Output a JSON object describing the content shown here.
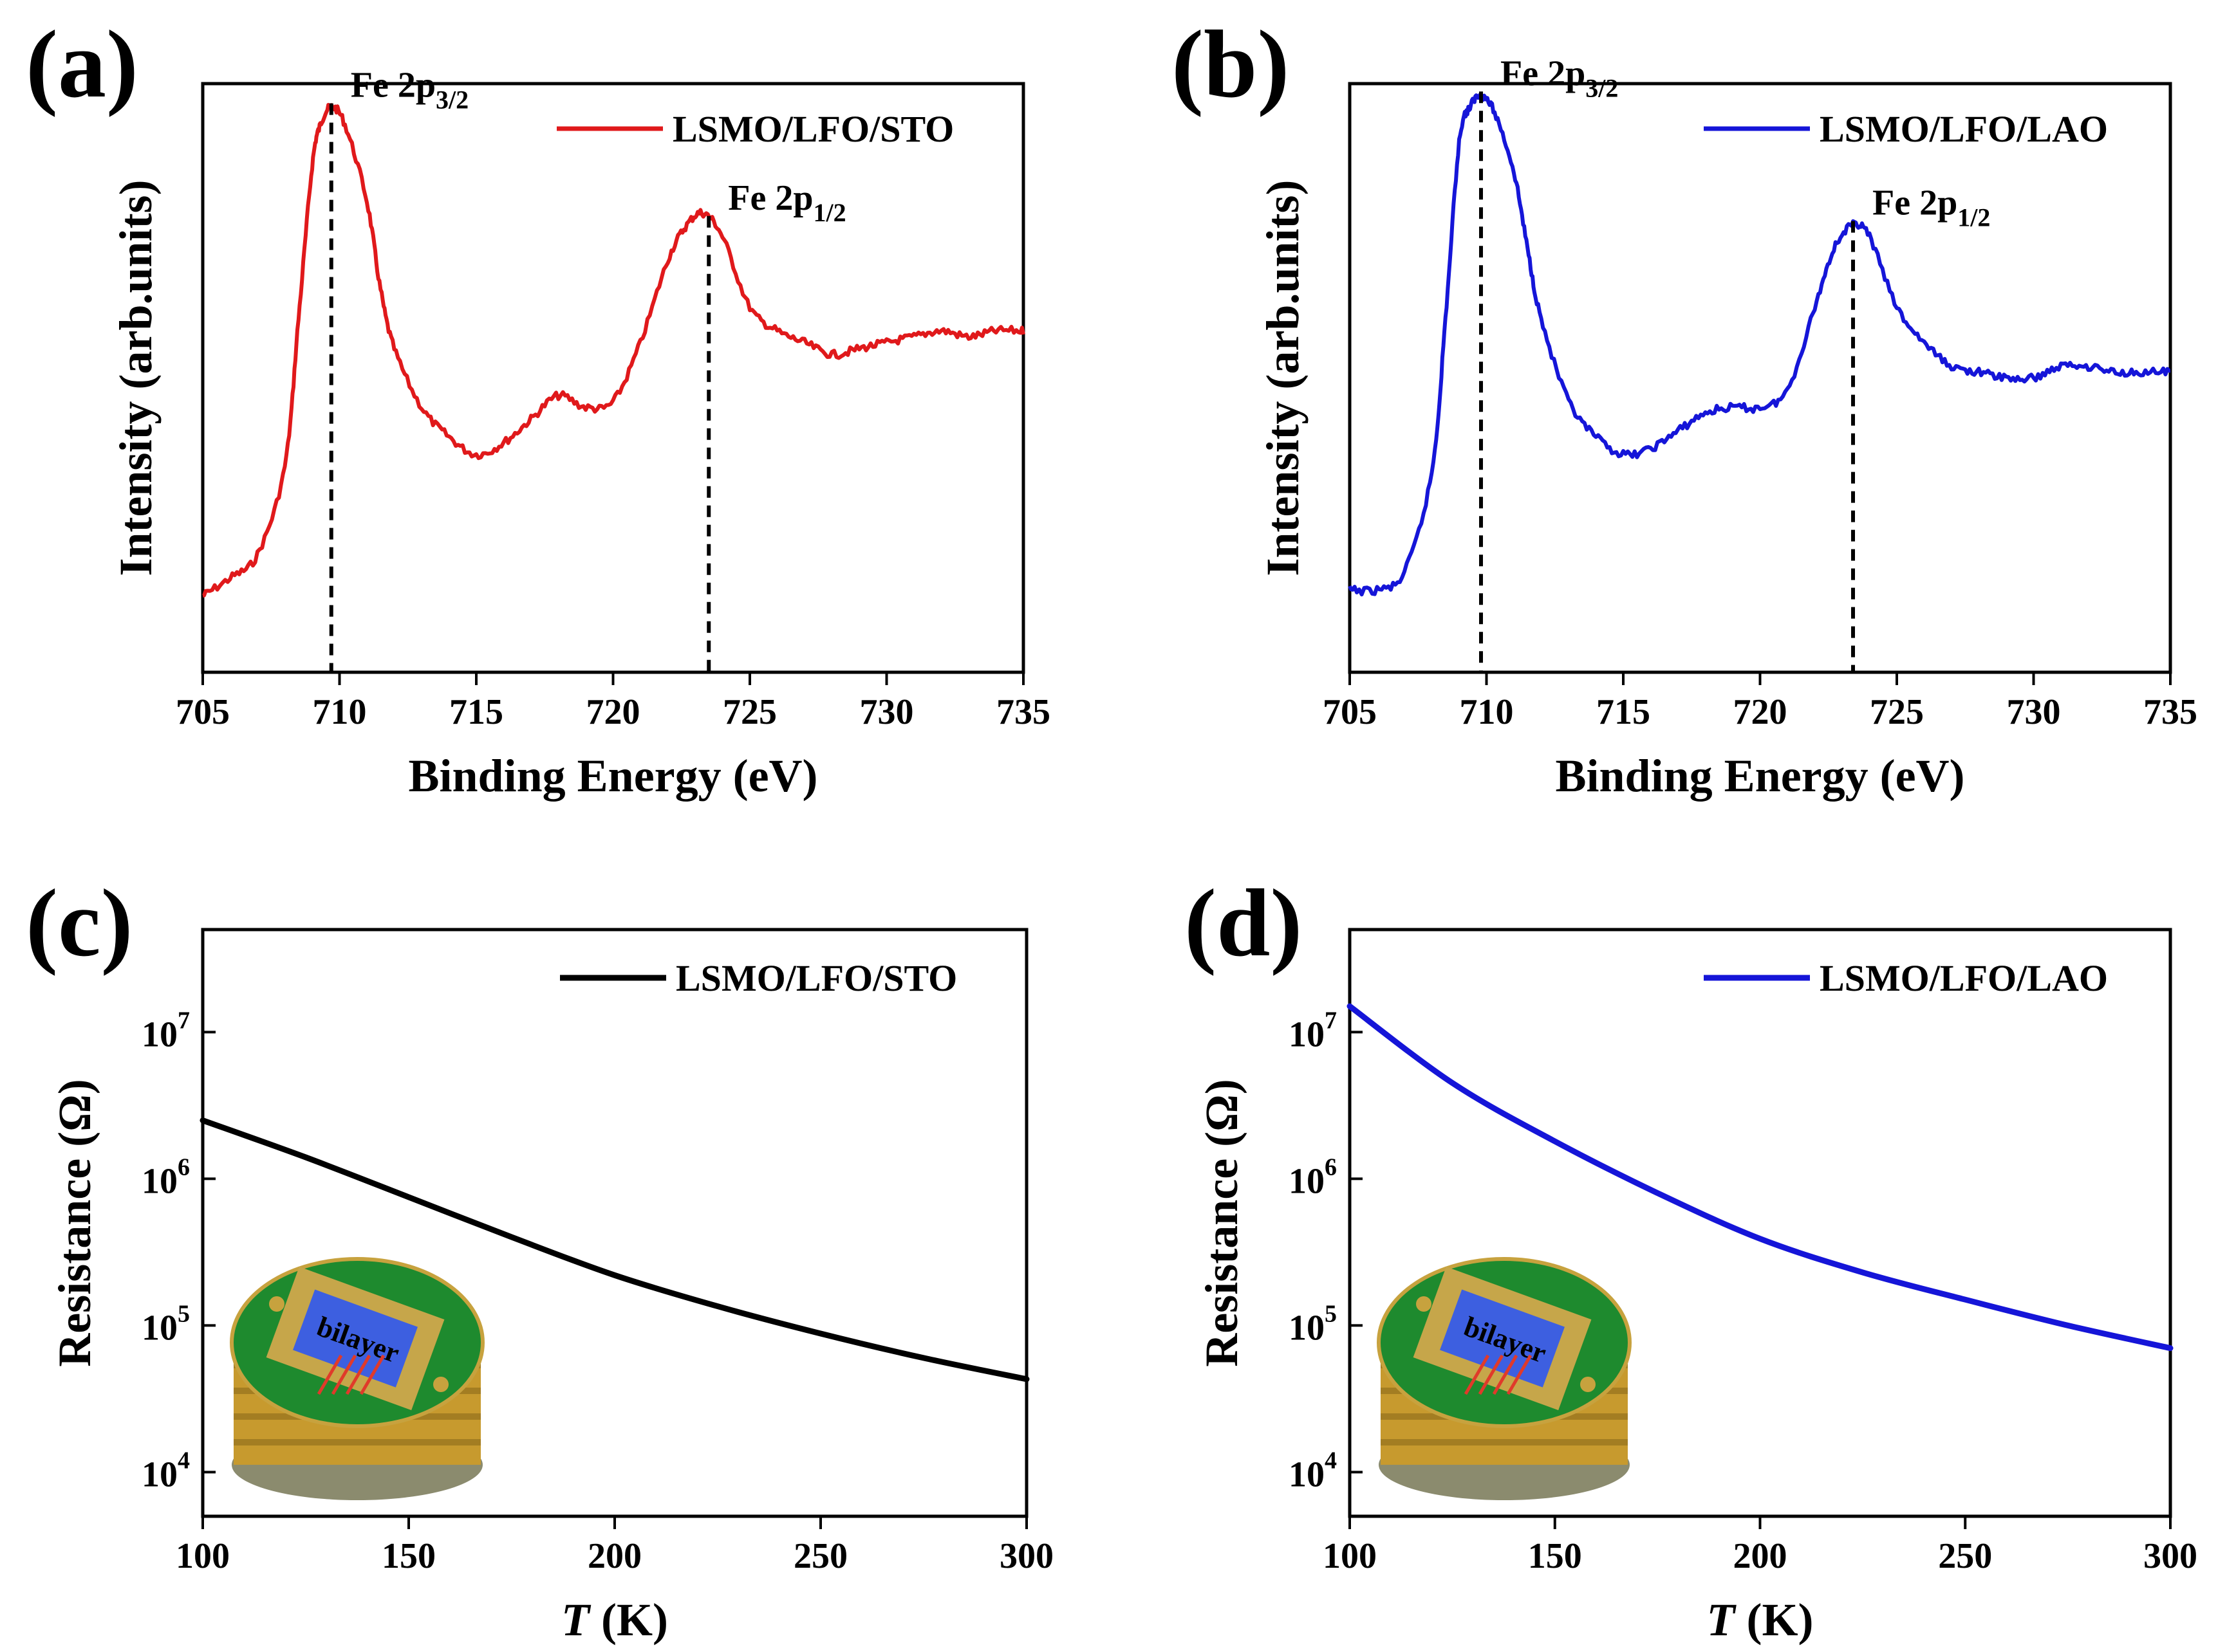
{
  "colors": {
    "red": "#e0191b",
    "blue": "#1515d8",
    "black": "#000000"
  },
  "chart_data": [
    {
      "id": "a",
      "panel_label": "(a)",
      "type": "line",
      "title": "",
      "xlabel": "Binding Energy (eV)",
      "ylabel": "Intensity (arb.units)",
      "xlim": [
        705,
        735
      ],
      "ylim": [
        0,
        100
      ],
      "xticks": [
        705,
        710,
        715,
        720,
        725,
        730,
        735
      ],
      "x_tick_labels": [
        "705",
        "710",
        "715",
        "720",
        "725",
        "730",
        "735"
      ],
      "legend": {
        "position": "top-right",
        "label": "LSMO/LFO/STO"
      },
      "series": [
        {
          "name": "LSMO/LFO/STO",
          "color": "#e0191b",
          "x": [
            705,
            706,
            707,
            708,
            708.5,
            709,
            709.3,
            709.7,
            710.2,
            711,
            711.5,
            712,
            713,
            714,
            715,
            716,
            717,
            718,
            719,
            720,
            721,
            722,
            722.7,
            723.3,
            724,
            725,
            726,
            727,
            728,
            729,
            730,
            731,
            732,
            733,
            734,
            735
          ],
          "y": [
            13,
            16,
            20,
            35,
            60,
            86,
            93,
            96,
            93,
            80,
            65,
            55,
            45,
            40,
            37,
            39,
            43,
            47,
            45,
            46,
            56,
            70,
            76,
            78,
            74,
            62,
            58,
            56,
            54,
            55,
            56,
            57,
            58,
            57,
            58,
            58
          ]
        }
      ],
      "annotations": [
        {
          "main": "Fe 2p",
          "sub": "3/2",
          "x": 709.7
        },
        {
          "main": "Fe 2p",
          "sub": "1/2",
          "x": 723.5
        }
      ]
    },
    {
      "id": "b",
      "panel_label": "(b)",
      "type": "line",
      "title": "",
      "xlabel": "Binding Energy (eV)",
      "ylabel": "Intensity (arb.units)",
      "xlim": [
        705,
        735
      ],
      "ylim": [
        0,
        100
      ],
      "xticks": [
        705,
        710,
        715,
        720,
        725,
        730,
        735
      ],
      "x_tick_labels": [
        "705",
        "710",
        "715",
        "720",
        "725",
        "730",
        "735"
      ],
      "legend": {
        "position": "top-right",
        "label": "LSMO/LFO/LAO"
      },
      "series": [
        {
          "name": "LSMO/LFO/LAO",
          "color": "#1515d8",
          "x": [
            705,
            706,
            707,
            708,
            708.5,
            709,
            709.4,
            709.8,
            710.3,
            711,
            711.5,
            712,
            713,
            714,
            715,
            716,
            717,
            718,
            719,
            720,
            721,
            722,
            722.7,
            723.4,
            724,
            725,
            726,
            727,
            728,
            729,
            730,
            731,
            732,
            733,
            734,
            735
          ],
          "y": [
            14,
            14,
            17,
            34,
            60,
            90,
            96,
            98,
            95,
            85,
            72,
            60,
            46,
            40,
            37,
            38,
            41,
            44,
            45,
            45,
            48,
            62,
            72,
            76,
            74,
            62,
            56,
            52,
            51,
            50,
            50,
            52,
            52,
            51,
            51,
            51
          ]
        }
      ],
      "annotations": [
        {
          "main": "Fe 2p",
          "sub": "3/2",
          "x": 709.8
        },
        {
          "main": "Fe 2p",
          "sub": "1/2",
          "x": 723.4
        }
      ]
    },
    {
      "id": "c",
      "panel_label": "(c)",
      "type": "line",
      "title": "",
      "xlabel": "T (K)",
      "xlabel_italic": "T",
      "xlabel_rest": " (K)",
      "ylabel": "Resistance (Ω)",
      "yscale": "log",
      "xlim": [
        100,
        300
      ],
      "ylim": [
        5000,
        50000000
      ],
      "xticks": [
        100,
        150,
        200,
        250,
        300
      ],
      "x_tick_labels": [
        "100",
        "150",
        "200",
        "250",
        "300"
      ],
      "y_tick_labels": [
        {
          "base": "10",
          "exp": "4",
          "value": 10000
        },
        {
          "base": "10",
          "exp": "5",
          "value": 100000
        },
        {
          "base": "10",
          "exp": "6",
          "value": 1000000
        },
        {
          "base": "10",
          "exp": "7",
          "value": 10000000
        }
      ],
      "legend": {
        "position": "top-right",
        "label": "LSMO/LFO/STO"
      },
      "inset_label": "bilayer",
      "series": [
        {
          "name": "LSMO/LFO/STO",
          "color": "#000000",
          "x": [
            100,
            125,
            150,
            175,
            200,
            225,
            250,
            275,
            300
          ],
          "y": [
            2500000,
            1400000,
            750000,
            400000,
            220000,
            135000,
            88000,
            60000,
            43000
          ]
        }
      ]
    },
    {
      "id": "d",
      "panel_label": "(d)",
      "type": "line",
      "title": "",
      "xlabel": "T (K)",
      "xlabel_italic": "T",
      "xlabel_rest": " (K)",
      "ylabel": "Resistance (Ω)",
      "yscale": "log",
      "xlim": [
        100,
        300
      ],
      "ylim": [
        5000,
        50000000
      ],
      "xticks": [
        100,
        150,
        200,
        250,
        300
      ],
      "x_tick_labels": [
        "100",
        "150",
        "200",
        "250",
        "300"
      ],
      "y_tick_labels": [
        {
          "base": "10",
          "exp": "4",
          "value": 10000
        },
        {
          "base": "10",
          "exp": "5",
          "value": 100000
        },
        {
          "base": "10",
          "exp": "6",
          "value": 1000000
        },
        {
          "base": "10",
          "exp": "7",
          "value": 10000000
        }
      ],
      "legend": {
        "position": "top-right",
        "label": "LSMO/LFO/LAO"
      },
      "inset_label": "bilayer",
      "series": [
        {
          "name": "LSMO/LFO/LAO",
          "color": "#1515d8",
          "x": [
            100,
            125,
            150,
            175,
            200,
            225,
            250,
            275,
            300
          ],
          "y": [
            15000000,
            4500000,
            1800000,
            800000,
            390000,
            230000,
            150000,
            100000,
            70000
          ]
        }
      ]
    }
  ]
}
